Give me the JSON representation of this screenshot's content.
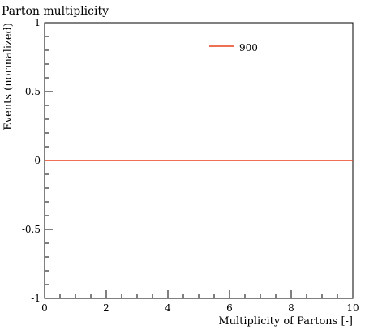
{
  "chart_data": {
    "type": "line",
    "title": "Parton multiplicity",
    "xlabel": "Multiplicity of Partons [-]",
    "ylabel": "Events (normalized)",
    "xlim": [
      0,
      10
    ],
    "ylim": [
      -1,
      1
    ],
    "x_ticks": [
      0,
      2,
      4,
      6,
      8,
      10
    ],
    "x_tick_labels": [
      "0",
      "2",
      "4",
      "6",
      "8",
      "10"
    ],
    "y_ticks": [
      -1,
      -0.5,
      0,
      0.5,
      1
    ],
    "y_tick_labels": [
      "-1",
      "-0.5",
      "0",
      "0.5",
      "1"
    ],
    "grid": false,
    "legend_position": "top-right",
    "series": [
      {
        "name": "900",
        "color": "#e8411b",
        "x": [
          0,
          10
        ],
        "y": [
          0,
          0
        ]
      }
    ]
  }
}
